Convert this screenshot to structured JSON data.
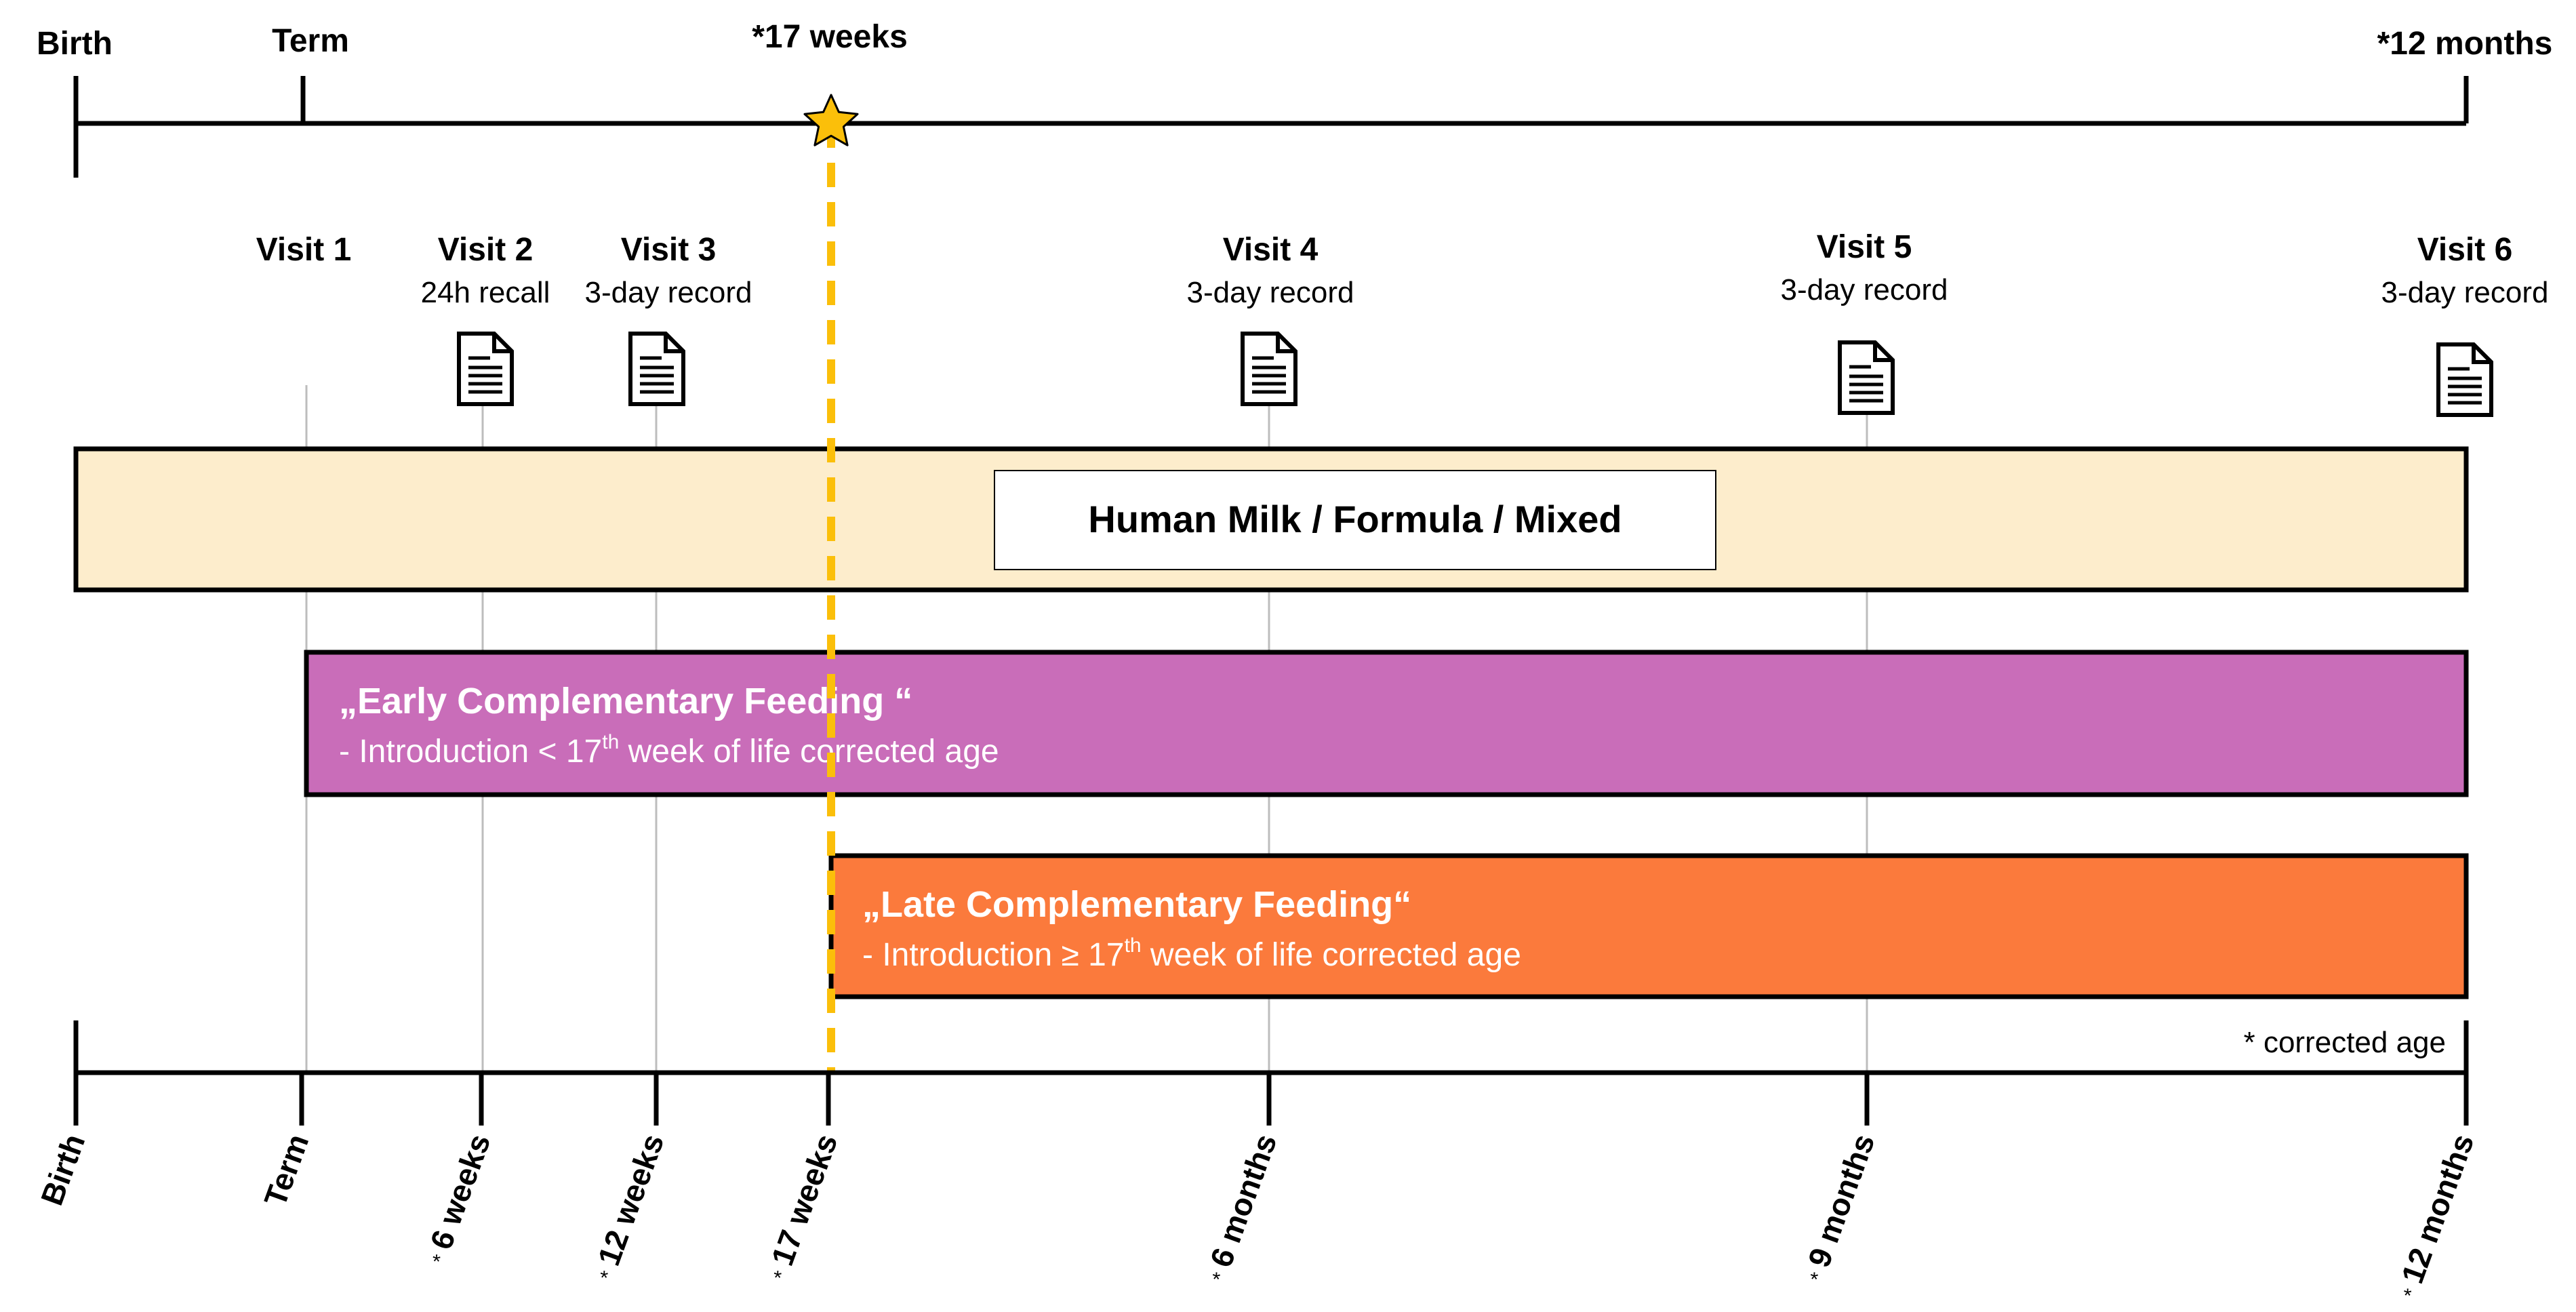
{
  "colors": {
    "milk_band": "#fdedcc",
    "early_band": "#c96db9",
    "late_band": "#fb7a3c",
    "dash_line": "#fbbf0a",
    "star": "#fbbf0a",
    "guide": "#bdbdbd",
    "axis": "#000000"
  },
  "top_axis": {
    "birth": "Birth",
    "term": "Term",
    "week17": "*17 weeks",
    "month12": "*12 months"
  },
  "visits": [
    {
      "title": "Visit 1",
      "subtitle": "",
      "icon": "document-icon"
    },
    {
      "title": "Visit 2",
      "subtitle": "24h recall",
      "icon": "document-icon"
    },
    {
      "title": "Visit 3",
      "subtitle": "3-day record",
      "icon": "document-icon"
    },
    {
      "title": "Visit 4",
      "subtitle": "3-day record",
      "icon": "document-icon"
    },
    {
      "title": "Visit 5",
      "subtitle": "3-day record",
      "icon": "document-icon"
    },
    {
      "title": "Visit 6",
      "subtitle": "3-day record",
      "icon": "document-icon"
    }
  ],
  "milk_band": {
    "label": "Human Milk / Formula / Mixed"
  },
  "early_band": {
    "title": "„Early Complementary Feeding “",
    "desc_pre": "- Introduction < 17",
    "desc_sup": "th",
    "desc_post": " week of life corrected age"
  },
  "late_band": {
    "title": "„Late Complementary Feeding“",
    "desc_pre": "- Introduction ≥ 17",
    "desc_sup": "th",
    "desc_post": " week of life corrected age"
  },
  "footnote": "* corrected age",
  "bottom_axis": {
    "ticks": [
      {
        "star": "",
        "label": "Birth"
      },
      {
        "star": "",
        "label": "Term"
      },
      {
        "star": "*",
        "label": "6 weeks"
      },
      {
        "star": "*",
        "label": "12 weeks"
      },
      {
        "star": "*",
        "label": "17 weeks"
      },
      {
        "star": "*",
        "label": "6 months"
      },
      {
        "star": "*",
        "label": "9 months"
      },
      {
        "star": "*",
        "label": "12 months"
      }
    ]
  }
}
